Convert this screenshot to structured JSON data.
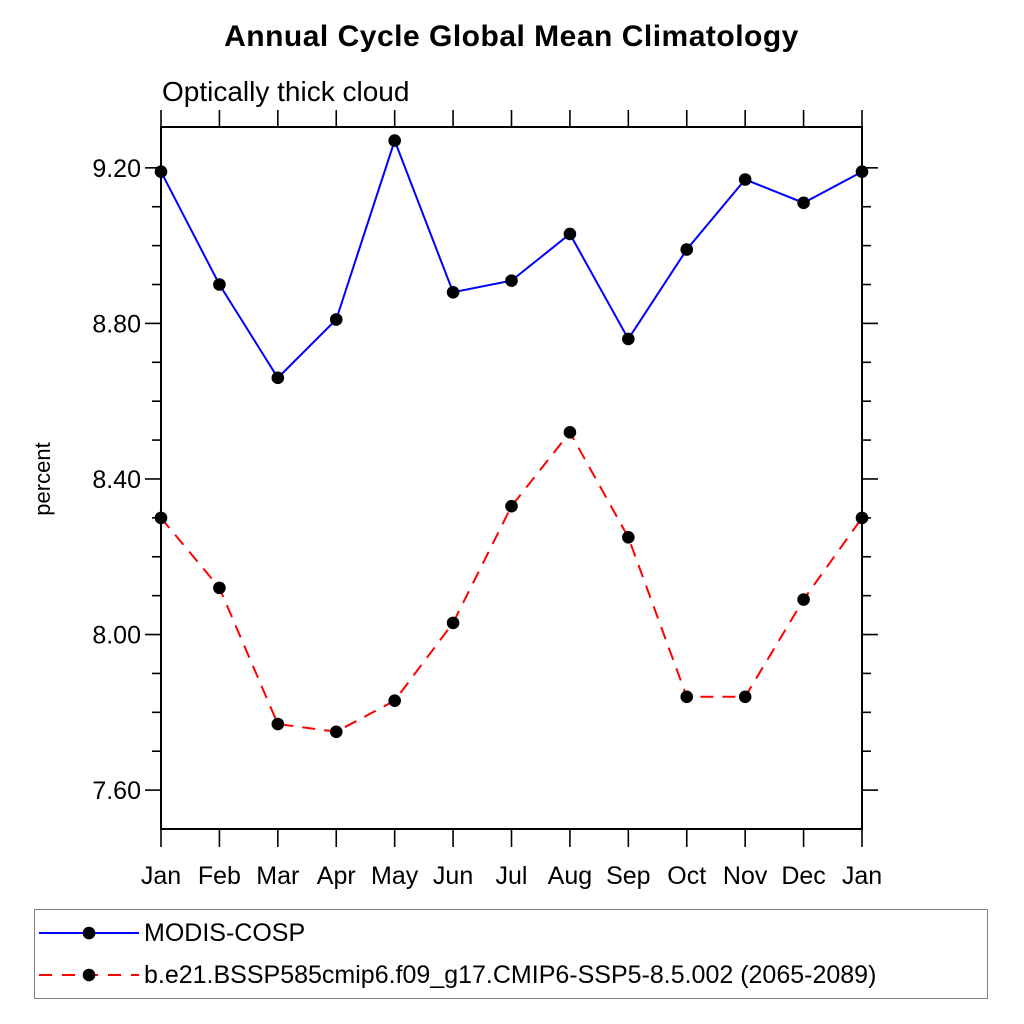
{
  "title": "Annual Cycle Global Mean Climatology",
  "subtitle": "Optically thick cloud",
  "ylabel": "percent",
  "chart_data": {
    "type": "line",
    "categories": [
      "Jan",
      "Feb",
      "Mar",
      "Apr",
      "May",
      "Jun",
      "Jul",
      "Aug",
      "Sep",
      "Oct",
      "Nov",
      "Dec",
      "Jan"
    ],
    "series": [
      {
        "name": "MODIS-COSP",
        "color": "#0000ff",
        "line_style": "solid",
        "marker": "filled-circle",
        "marker_color": "#000000",
        "values": [
          9.19,
          8.9,
          8.66,
          8.81,
          9.27,
          8.88,
          8.91,
          9.03,
          8.76,
          8.99,
          9.17,
          9.11,
          9.19
        ]
      },
      {
        "name": "b.e21.BSSP585cmip6.f09_g17.CMIP6-SSP5-8.5.002 (2065-2089)",
        "color": "#ff0000",
        "line_style": "dashed",
        "marker": "filled-circle",
        "marker_color": "#000000",
        "values": [
          8.3,
          8.12,
          7.77,
          7.75,
          7.83,
          8.03,
          8.33,
          8.52,
          8.25,
          7.84,
          7.84,
          8.09,
          8.3
        ]
      }
    ],
    "xlabel": "",
    "ylabel": "percent",
    "ytick_labels": [
      "7.60",
      "8.00",
      "8.40",
      "8.80",
      "9.20"
    ],
    "yticks_major": [
      7.6,
      8.0,
      8.4,
      8.8,
      9.2
    ],
    "ytick_minor_step": 0.1,
    "ylim": [
      7.5,
      9.305
    ],
    "grid": false,
    "legend_position": "bottom"
  },
  "legend": {
    "items": [
      {
        "label": "MODIS-COSP"
      },
      {
        "label": "b.e21.BSSP585cmip6.f09_g17.CMIP6-SSP5-8.5.002 (2065-2089)"
      }
    ]
  }
}
